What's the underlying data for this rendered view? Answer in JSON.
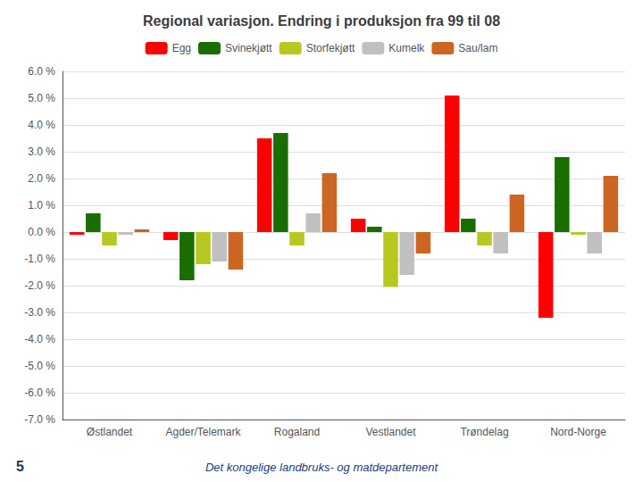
{
  "chart_data": {
    "type": "bar",
    "title": "Regional variasjon. Endring i produksjon fra 99 til 08",
    "categories": [
      "Østlandet",
      "Agder/Telemark",
      "Rogaland",
      "Vestlandet",
      "Trøndelag",
      "Nord-Norge"
    ],
    "series": [
      {
        "name": "Egg",
        "color": "#ff0000",
        "values": [
          -0.1,
          -0.3,
          3.5,
          0.5,
          5.1,
          -3.2
        ]
      },
      {
        "name": "Svinekjøtt",
        "color": "#1a6e00",
        "values": [
          0.7,
          -1.8,
          3.7,
          0.2,
          0.5,
          2.8
        ]
      },
      {
        "name": "Storfekjøtt",
        "color": "#b8c820",
        "values": [
          -0.5,
          -1.2,
          -0.5,
          -2.05,
          -0.5,
          -0.1
        ]
      },
      {
        "name": "Kumelk",
        "color": "#c0c0c0",
        "values": [
          -0.1,
          -1.1,
          0.7,
          -1.6,
          -0.8,
          -0.8
        ]
      },
      {
        "name": "Sau/lam",
        "color": "#cc6622",
        "values": [
          0.1,
          -1.4,
          2.2,
          -0.8,
          1.4,
          2.1
        ]
      }
    ],
    "ylim": [
      -7.0,
      6.0
    ],
    "yticks": [
      {
        "value": -7.0,
        "label": "-7.0 %"
      },
      {
        "value": -6.0,
        "label": "-6.0 %"
      },
      {
        "value": -5.0,
        "label": "-5.0 %"
      },
      {
        "value": -4.0,
        "label": "-4.0 %"
      },
      {
        "value": -3.0,
        "label": "-3.0 %"
      },
      {
        "value": -2.0,
        "label": "-2.0 %"
      },
      {
        "value": -1.0,
        "label": "-1.0 %"
      },
      {
        "value": 0.0,
        "label": "0.0 %"
      },
      {
        "value": 1.0,
        "label": "1.0 %"
      },
      {
        "value": 2.0,
        "label": "2.0 %"
      },
      {
        "value": 3.0,
        "label": "3.0 %"
      },
      {
        "value": 4.0,
        "label": "4.0 %"
      },
      {
        "value": 5.0,
        "label": "5.0 %"
      },
      {
        "value": 6.0,
        "label": "6.0 %"
      }
    ],
    "grid": true,
    "legend": "top",
    "annotations": [
      "Det kongelige landbruks- og matdepartement",
      "5"
    ]
  }
}
